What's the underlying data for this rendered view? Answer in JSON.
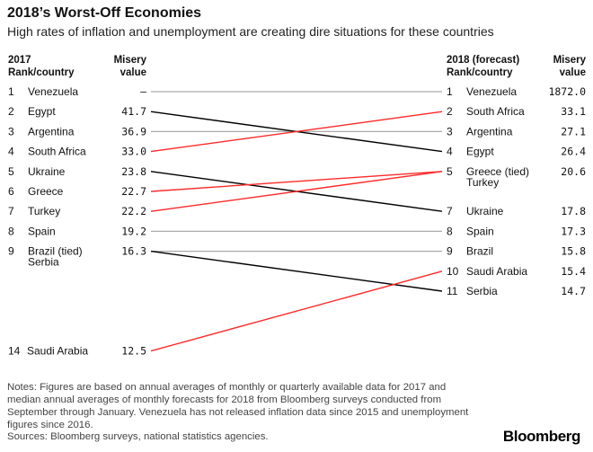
{
  "title": "2018’s Worst-Off Economies",
  "subtitle": "High rates of inflation and unemployment are creating dire situations for these countries",
  "chart_data": {
    "type": "slope",
    "left_header": {
      "rank_year": "2017",
      "rank_label": "Rank/country",
      "value_line1": "Misery",
      "value_line2": "value"
    },
    "right_header": {
      "rank_year": "2018 (forecast)",
      "rank_label": "Rank/country",
      "value_line1": "Misery",
      "value_line2": "value"
    },
    "countries": [
      {
        "name": "Venezuela",
        "rank2017": 1,
        "label2017": "1",
        "value2017": "–",
        "rank2018": 1,
        "label2018": "1",
        "value2018": "1872.0",
        "color": "#aaaaaa",
        "name2017": "Venezuela",
        "name2018": "Venezuela"
      },
      {
        "name": "Egypt",
        "rank2017": 2,
        "label2017": "2",
        "value2017": "41.7",
        "rank2018": 4,
        "label2018": "4",
        "value2018": "26.4",
        "color": "#000000",
        "name2017": "Egypt",
        "name2018": "Egypt"
      },
      {
        "name": "Argentina",
        "rank2017": 3,
        "label2017": "3",
        "value2017": "36.9",
        "rank2018": 3,
        "label2018": "3",
        "value2018": "27.1",
        "color": "#aaaaaa",
        "name2017": "Argentina",
        "name2018": "Argentina"
      },
      {
        "name": "South Africa",
        "rank2017": 4,
        "label2017": "4",
        "value2017": "33.0",
        "rank2018": 2,
        "label2018": "2",
        "value2018": "33.1",
        "color": "#ff2a2a",
        "name2017": "South Africa",
        "name2018": "South Africa"
      },
      {
        "name": "Ukraine",
        "rank2017": 5,
        "label2017": "5",
        "value2017": "23.8",
        "rank2018": 7,
        "label2018": "7",
        "value2018": "17.8",
        "color": "#000000",
        "name2017": "Ukraine",
        "name2018": "Ukraine"
      },
      {
        "name": "Greece",
        "rank2017": 6,
        "label2017": "6",
        "value2017": "22.7",
        "rank2018": 5,
        "label2018": "5",
        "value2018": "20.6",
        "color": "#ff2a2a",
        "name2017": "Greece",
        "name2018": "Greece (tied)"
      },
      {
        "name": "Turkey",
        "rank2017": 7,
        "label2017": "7",
        "value2017": "22.2",
        "rank2018": 5,
        "label2018": "",
        "value2018": "",
        "color": "#ff2a2a",
        "name2017": "Turkey",
        "name2018": "Turkey"
      },
      {
        "name": "Spain",
        "rank2017": 8,
        "label2017": "8",
        "value2017": "19.2",
        "rank2018": 8,
        "label2018": "8",
        "value2018": "17.3",
        "color": "#aaaaaa",
        "name2017": "Spain",
        "name2018": "Spain"
      },
      {
        "name": "Brazil",
        "rank2017": 9,
        "label2017": "9",
        "value2017": "16.3",
        "rank2018": 9,
        "label2018": "9",
        "value2018": "15.8",
        "color": "#aaaaaa",
        "name2017": "Brazil (tied)",
        "name2018": "Brazil"
      },
      {
        "name": "Serbia",
        "rank2017": 9,
        "label2017": "",
        "value2017": "",
        "rank2018": 11,
        "label2018": "11",
        "value2018": "14.7",
        "color": "#000000",
        "name2017": "Serbia",
        "name2018": "Serbia"
      },
      {
        "name": "Saudi Arabia",
        "rank2017": 14,
        "label2017": "14",
        "value2017": "12.5",
        "rank2018": 10,
        "label2018": "10",
        "value2018": "15.4",
        "color": "#ff2a2a",
        "name2017": "Saudi Arabia",
        "name2018": "Saudi Arabia"
      }
    ]
  },
  "notes": "Notes: Figures are based on annual averages of monthly or quarterly available data for 2017 and median annual averages of monthly forecasts for 2018 from Bloomberg surveys conducted from September through January. Venezuela has not released inflation data since 2015 and unemployment figures since 2016.",
  "sources": "Sources: Bloomberg surveys, national statistics agencies.",
  "logo": "Bloomberg"
}
